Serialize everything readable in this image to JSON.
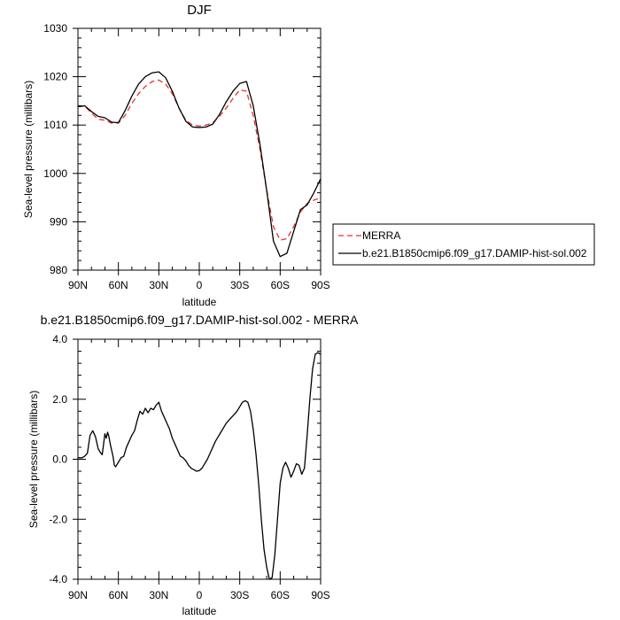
{
  "chart_data": [
    {
      "type": "line",
      "title": "DJF",
      "xlabel": "latitude",
      "ylabel": "Sea-level pressure (millibars)",
      "ylim": [
        980,
        1030
      ],
      "y_ticks": [
        980,
        990,
        1000,
        1010,
        1020,
        1030
      ],
      "x_ticks": [
        {
          "value": 90,
          "label": "90N"
        },
        {
          "value": 60,
          "label": "60N"
        },
        {
          "value": 30,
          "label": "30N"
        },
        {
          "value": 0,
          "label": "0"
        },
        {
          "value": -30,
          "label": "30S"
        },
        {
          "value": -60,
          "label": "60S"
        },
        {
          "value": -90,
          "label": "90S"
        }
      ],
      "legend_position": "right",
      "series": [
        {
          "name": "MERRA",
          "color": "#e8322c",
          "dash": true,
          "x": [
            90,
            85,
            80,
            75,
            70,
            65,
            60,
            55,
            50,
            45,
            40,
            35,
            30,
            25,
            20,
            15,
            10,
            5,
            0,
            -5,
            -10,
            -15,
            -20,
            -25,
            -30,
            -35,
            -40,
            -45,
            -50,
            -55,
            -60,
            -65,
            -70,
            -75,
            -80,
            -85,
            -90
          ],
          "y": [
            1013.8,
            1013.9,
            1012.5,
            1011.2,
            1011.0,
            1010.4,
            1010.4,
            1012.0,
            1014.5,
            1016.5,
            1018.0,
            1019.0,
            1019.3,
            1018.5,
            1016.5,
            1013.5,
            1011.0,
            1010.0,
            1009.8,
            1010.0,
            1010.5,
            1011.8,
            1013.5,
            1015.5,
            1017.3,
            1017.0,
            1012.0,
            1005.0,
            996.5,
            989.0,
            986.2,
            986.5,
            989.0,
            992.0,
            993.8,
            994.5,
            994.9
          ]
        },
        {
          "name": "b.e21.B1850cmip6.f09_g17.DAMIP-hist-sol.002",
          "color": "#000000",
          "dash": false,
          "x": [
            90,
            85,
            80,
            75,
            70,
            65,
            60,
            55,
            50,
            45,
            40,
            35,
            30,
            25,
            20,
            15,
            10,
            5,
            0,
            -5,
            -10,
            -15,
            -20,
            -25,
            -30,
            -35,
            -40,
            -45,
            -50,
            -55,
            -60,
            -65,
            -70,
            -75,
            -80,
            -85,
            -90
          ],
          "y": [
            1013.8,
            1014.0,
            1012.8,
            1011.8,
            1011.5,
            1010.6,
            1010.5,
            1013.0,
            1016.0,
            1018.5,
            1020.0,
            1020.8,
            1021.0,
            1019.8,
            1017.0,
            1013.5,
            1010.8,
            1009.6,
            1009.5,
            1009.6,
            1010.2,
            1012.2,
            1014.8,
            1017.0,
            1018.6,
            1019.0,
            1014.0,
            1006.0,
            996.5,
            986.0,
            982.8,
            983.5,
            988.0,
            992.5,
            993.5,
            996.0,
            998.9
          ]
        }
      ]
    },
    {
      "type": "line",
      "title": "b.e21.B1850cmip6.f09_g17.DAMIP-hist-sol.002 - MERRA",
      "xlabel": "latitude",
      "ylabel": "Sea-level pressure (millibars)",
      "ylim": [
        -4.0,
        4.0
      ],
      "y_ticks": [
        {
          "value": -4.0,
          "label": "-4.0"
        },
        {
          "value": -2.0,
          "label": "-2.0"
        },
        {
          "value": 0.0,
          "label": "0.0"
        },
        {
          "value": 2.0,
          "label": "2.0"
        },
        {
          "value": 4.0,
          "label": "4.0"
        }
      ],
      "x_ticks": [
        {
          "value": 90,
          "label": "90N"
        },
        {
          "value": 60,
          "label": "60N"
        },
        {
          "value": 30,
          "label": "30N"
        },
        {
          "value": 0,
          "label": "0"
        },
        {
          "value": -30,
          "label": "30S"
        },
        {
          "value": -60,
          "label": "60S"
        },
        {
          "value": -90,
          "label": "90S"
        }
      ],
      "series": [
        {
          "color": "#000000",
          "x": [
            90,
            87,
            85,
            83,
            81,
            79,
            77,
            75,
            73,
            72,
            71,
            70,
            69,
            68,
            67,
            66,
            65,
            64,
            63,
            62,
            60,
            58,
            56,
            54,
            52,
            50,
            48,
            46,
            44,
            42,
            40,
            38,
            36,
            34,
            32,
            30,
            28,
            26,
            24,
            22,
            20,
            18,
            16,
            14,
            12,
            10,
            8,
            6,
            4,
            2,
            0,
            -2,
            -4,
            -6,
            -8,
            -10,
            -12,
            -14,
            -16,
            -18,
            -20,
            -22,
            -24,
            -26,
            -28,
            -30,
            -32,
            -34,
            -36,
            -38,
            -40,
            -42,
            -44,
            -46,
            -48,
            -50,
            -52,
            -54,
            -56,
            -58,
            -60,
            -62,
            -64,
            -66,
            -68,
            -70,
            -72,
            -74,
            -76,
            -78,
            -80,
            -82,
            -84,
            -86,
            -88,
            -90
          ],
          "y": [
            0.05,
            0.05,
            0.1,
            0.2,
            0.8,
            0.95,
            0.75,
            0.35,
            0.2,
            0.15,
            0.5,
            0.85,
            0.7,
            0.9,
            0.75,
            0.5,
            0.3,
            0.1,
            -0.2,
            -0.25,
            -0.1,
            0.05,
            0.1,
            0.4,
            0.6,
            0.8,
            0.95,
            1.3,
            1.6,
            1.5,
            1.7,
            1.55,
            1.7,
            1.65,
            1.8,
            1.9,
            1.6,
            1.4,
            1.2,
            1.0,
            0.7,
            0.5,
            0.3,
            0.1,
            0.05,
            -0.05,
            -0.2,
            -0.3,
            -0.35,
            -0.4,
            -0.38,
            -0.3,
            -0.15,
            0.0,
            0.2,
            0.4,
            0.6,
            0.75,
            0.9,
            1.05,
            1.2,
            1.3,
            1.4,
            1.5,
            1.6,
            1.75,
            1.9,
            1.95,
            1.9,
            1.6,
            1.0,
            0.2,
            -0.8,
            -2.0,
            -3.0,
            -3.6,
            -4.0,
            -3.95,
            -3.2,
            -2.0,
            -0.8,
            -0.3,
            -0.1,
            -0.3,
            -0.6,
            -0.4,
            -0.15,
            -0.2,
            -0.5,
            -0.3,
            0.8,
            2.0,
            3.0,
            3.5,
            3.55,
            3.5
          ]
        }
      ]
    }
  ]
}
